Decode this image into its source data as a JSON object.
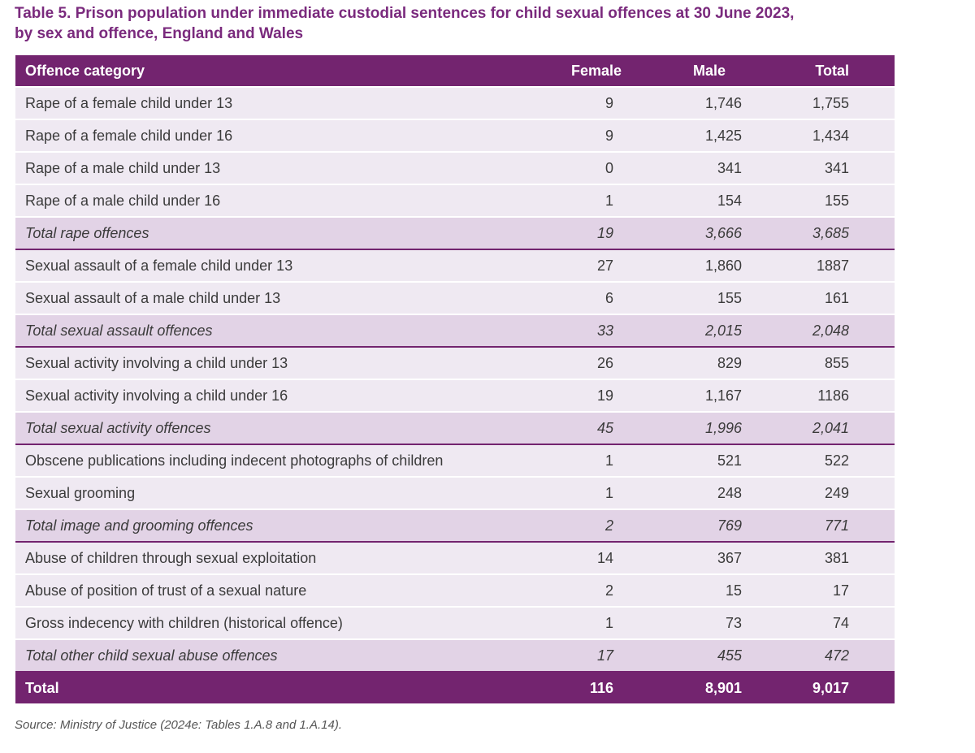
{
  "title": {
    "line1": "Table 5. Prison population under immediate custodial sentences for child sexual offences at 30 June 2023,",
    "line2": "by sex and offence, England and Wales"
  },
  "columns": [
    "Offence category",
    "Female",
    "Male",
    "Total"
  ],
  "rows": [
    {
      "type": "row",
      "category": "Rape of a female child under 13",
      "female": "9",
      "male": "1,746",
      "total": "1,755"
    },
    {
      "type": "row",
      "category": "Rape of a female child under 16",
      "female": "9",
      "male": "1,425",
      "total": "1,434"
    },
    {
      "type": "row",
      "category": "Rape of a male child under 13",
      "female": "0",
      "male": "341",
      "total": "341"
    },
    {
      "type": "row",
      "category": "Rape of a male child under 16",
      "female": "1",
      "male": "154",
      "total": "155"
    },
    {
      "type": "subtotal",
      "category": "Total rape offences",
      "female": "19",
      "male": "3,666",
      "total": "3,685"
    },
    {
      "type": "row",
      "category": "Sexual assault of a female child under 13",
      "female": "27",
      "male": "1,860",
      "total": "1887"
    },
    {
      "type": "row",
      "category": "Sexual assault of a male child under 13",
      "female": "6",
      "male": "155",
      "total": "161"
    },
    {
      "type": "subtotal",
      "category": "Total sexual assault offences",
      "female": "33",
      "male": "2,015",
      "total": "2,048"
    },
    {
      "type": "row",
      "category": "Sexual activity involving a child under 13",
      "female": "26",
      "male": "829",
      "total": "855"
    },
    {
      "type": "row",
      "category": "Sexual activity involving a child under 16",
      "female": "19",
      "male": "1,167",
      "total": "1186"
    },
    {
      "type": "subtotal",
      "category": "Total sexual activity offences",
      "female": "45",
      "male": "1,996",
      "total": "2,041"
    },
    {
      "type": "row",
      "category": "Obscene publications including indecent photographs of children",
      "female": "1",
      "male": "521",
      "total": "522"
    },
    {
      "type": "row",
      "category": "Sexual grooming",
      "female": "1",
      "male": "248",
      "total": "249"
    },
    {
      "type": "subtotal",
      "category": "Total image and grooming offences",
      "female": "2",
      "male": "769",
      "total": "771"
    },
    {
      "type": "row",
      "category": "Abuse of children through sexual exploitation",
      "female": "14",
      "male": "367",
      "total": "381"
    },
    {
      "type": "row",
      "category": "Abuse of position of trust of a sexual nature",
      "female": "2",
      "male": "15",
      "total": "17"
    },
    {
      "type": "row",
      "category": "Gross indecency with children (historical offence)",
      "female": "1",
      "male": "73",
      "total": "74"
    },
    {
      "type": "subtotal",
      "category": "Total other child sexual abuse offences",
      "female": "17",
      "male": "455",
      "total": "472"
    }
  ],
  "total_row": {
    "category": "Total",
    "female": "116",
    "male": "8,901",
    "total": "9,017"
  },
  "source": "Source: Ministry of Justice (2024e: Tables 1.A.8 and 1.A.14).",
  "colors": {
    "header_bg": "#73246f",
    "title_text": "#7a2a7d",
    "row_bg": "#efe9f2",
    "subtotal_bg": "#e2d3e6"
  }
}
